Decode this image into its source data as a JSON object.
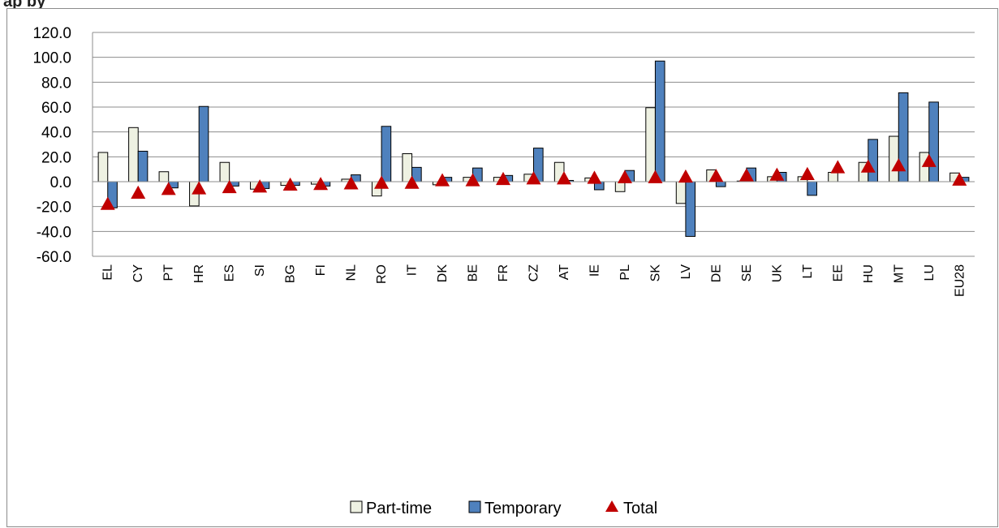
{
  "heading_fragment": "ap by",
  "chart_data": {
    "type": "bar",
    "categories": [
      "EL",
      "CY",
      "PT",
      "HR",
      "ES",
      "SI",
      "BG",
      "FI",
      "NL",
      "RO",
      "IT",
      "DK",
      "BE",
      "FR",
      "CZ",
      "AT",
      "IE",
      "PL",
      "SK",
      "LV",
      "DE",
      "SE",
      "UK",
      "LT",
      "EE",
      "HU",
      "MT",
      "LU",
      "EU28"
    ],
    "series": [
      {
        "name": "Part-time",
        "type": "bar",
        "color": "#eef1e2",
        "values": [
          23.5,
          43.5,
          8.0,
          -19.5,
          15.5,
          -6.0,
          -3.0,
          -2.0,
          2.0,
          -11.5,
          22.5,
          -2.5,
          3.5,
          3.5,
          6.0,
          15.5,
          3.0,
          -8.0,
          59.5,
          -17.5,
          9.5,
          0.5,
          4.0,
          4.0,
          7.5,
          15.5,
          36.5,
          23.5,
          7.0
        ]
      },
      {
        "name": "Temporary",
        "type": "bar",
        "color": "#4f81bd",
        "values": [
          -21.0,
          24.5,
          -5.0,
          60.5,
          -3.5,
          -5.5,
          -3.0,
          -3.5,
          5.5,
          44.5,
          11.5,
          3.5,
          11.0,
          5.0,
          27.0,
          1.0,
          -6.5,
          9.0,
          97.0,
          -44.0,
          -4.0,
          11.0,
          7.5,
          -11.0,
          0.0,
          34.0,
          71.5,
          64.0,
          3.5
        ]
      },
      {
        "name": "Total",
        "type": "marker",
        "color": "#c00000",
        "values": [
          -18.0,
          -9.0,
          -6.0,
          -5.5,
          -4.5,
          -4.0,
          -2.5,
          -2.0,
          -1.5,
          -1.0,
          -1.0,
          1.0,
          1.0,
          2.0,
          2.5,
          2.5,
          3.0,
          3.5,
          3.5,
          4.0,
          4.5,
          5.0,
          5.5,
          6.0,
          11.5,
          12.0,
          13.0,
          16.5,
          1.5
        ]
      }
    ],
    "y_ticks": [
      "120.0",
      "100.0",
      "80.0",
      "60.0",
      "40.0",
      "20.0",
      "0.0",
      "-20.0",
      "-40.0",
      "-60.0"
    ],
    "ylim": [
      -60,
      120
    ],
    "grid": true,
    "legend_position": "bottom"
  }
}
